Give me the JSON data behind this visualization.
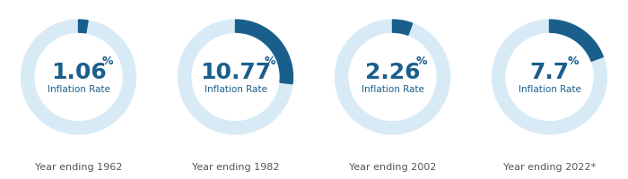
{
  "charts": [
    {
      "value": 1.06,
      "num": "1.06",
      "year": "Year ending 1962"
    },
    {
      "value": 10.77,
      "num": "10.77",
      "year": "Year ending 1982"
    },
    {
      "value": 2.26,
      "num": "2.26",
      "year": "Year ending 2002"
    },
    {
      "value": 7.7,
      "num": "7.7",
      "year": "Year ending 2022*"
    }
  ],
  "max_value": 40,
  "bg_color": "#ffffff",
  "ring_bg_color": "#d8eaf6",
  "ring_fg_color": "#1a5f8c",
  "text_color": "#1a5f8c",
  "year_color": "#555555",
  "label_text": "Inflation Rate",
  "num_fontsize": 18,
  "pct_fontsize": 9,
  "label_fontsize": 7.5,
  "year_fontsize": 8.0,
  "ring_outer": 1.0,
  "ring_inner": 0.78
}
